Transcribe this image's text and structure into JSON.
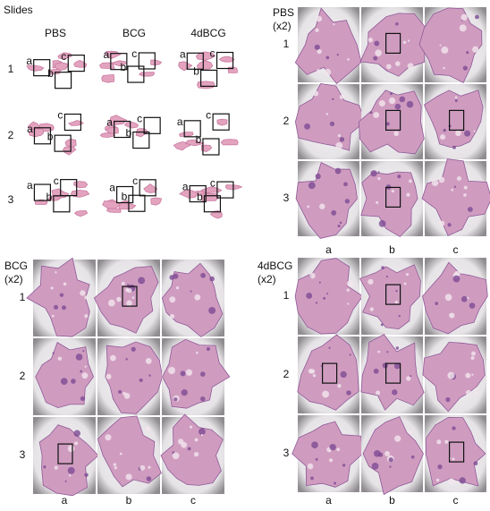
{
  "slides": {
    "title": "Slides",
    "columns": [
      "PBS",
      "BCG",
      "4dBCG"
    ],
    "rows": [
      "1",
      "2",
      "3"
    ],
    "box_labels": [
      "a",
      "b",
      "c"
    ]
  },
  "panels": [
    {
      "title": "PBS",
      "magnification": "(x2)",
      "rows": [
        "1",
        "2",
        "3"
      ],
      "columns": [
        "a",
        "b",
        "c"
      ]
    },
    {
      "title": "BCG",
      "magnification": "(x2)",
      "rows": [
        "1",
        "2",
        "3"
      ],
      "columns": [
        "a",
        "b",
        "c"
      ]
    },
    {
      "title": "4dBCG",
      "magnification": "(x2)",
      "rows": [
        "1",
        "2",
        "3"
      ],
      "columns": [
        "a",
        "b",
        "c"
      ]
    }
  ]
}
